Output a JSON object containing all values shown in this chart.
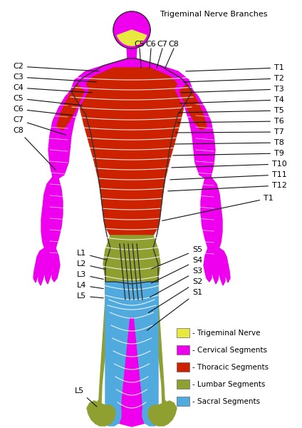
{
  "title": "Trigeminal Nerve Branches",
  "background_color": "#ffffff",
  "legend_items": [
    {
      "label": "- Trigeminal Nerve",
      "color": "#e8e840"
    },
    {
      "label": "- Cervical Segments",
      "color": "#ee00ee"
    },
    {
      "label": "- Thoracic Segments",
      "color": "#cc2200"
    },
    {
      "label": "- Lumbar Segments",
      "color": "#8fa030"
    },
    {
      "label": "- Sacral Segments",
      "color": "#50aadd"
    }
  ],
  "colors": {
    "trigeminal": "#e8e840",
    "cervical": "#ee00ee",
    "thoracic": "#cc2200",
    "lumbar": "#8fa030",
    "sacral": "#50aadd",
    "outline": "#333333",
    "line_color": "#111111",
    "white_line": "#ffffff"
  }
}
